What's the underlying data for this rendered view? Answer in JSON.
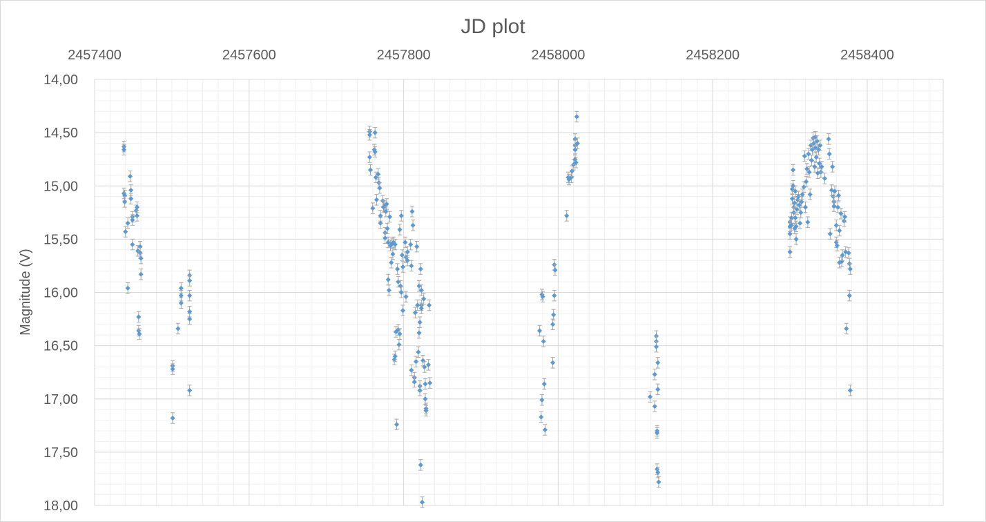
{
  "chart_data": {
    "type": "scatter",
    "title": "JD plot",
    "xlabel": "",
    "ylabel": "Magnitude (V)",
    "xlim": [
      2457380,
      2458480
    ],
    "ylim": [
      14.0,
      18.0
    ],
    "y_inverted": true,
    "x_axis_position": "top",
    "grid": true,
    "x_ticks": [
      "2457400",
      "2457600",
      "2457800",
      "2458000",
      "2458200",
      "2458400"
    ],
    "x_tick_values": [
      2457400,
      2457600,
      2457800,
      2458000,
      2458200,
      2458400
    ],
    "y_ticks": [
      "14,00",
      "14,50",
      "15,00",
      "15,50",
      "16,00",
      "16,50",
      "17,00",
      "17,50",
      "18,00"
    ],
    "y_tick_values": [
      14.0,
      14.5,
      15.0,
      15.5,
      16.0,
      16.5,
      17.0,
      17.5,
      18.0
    ],
    "marker_color": "#5b9bd5",
    "errorbar_color": "#a6a6a6",
    "series": [
      {
        "error": 0.05,
        "points": [
          [
            2457438,
            14.63
          ],
          [
            2457438,
            14.66
          ],
          [
            2457438,
            15.07
          ],
          [
            2457439,
            15.09
          ],
          [
            2457439,
            15.15
          ],
          [
            2457440,
            15.43
          ],
          [
            2457443,
            15.35
          ],
          [
            2457443,
            15.96
          ],
          [
            2457446,
            14.91
          ],
          [
            2457447,
            15.04
          ],
          [
            2457447,
            15.12
          ],
          [
            2457449,
            15.29
          ],
          [
            2457449,
            15.32
          ],
          [
            2457449,
            15.55
          ],
          [
            2457454,
            15.23
          ],
          [
            2457455,
            15.2
          ],
          [
            2457455,
            15.28
          ],
          [
            2457456,
            15.61
          ],
          [
            2457457,
            16.23
          ],
          [
            2457457,
            16.36
          ],
          [
            2457458,
            16.39
          ],
          [
            2457459,
            15.57
          ],
          [
            2457459,
            15.63
          ],
          [
            2457460,
            15.68
          ],
          [
            2457460,
            15.83
          ],
          [
            2457501,
            16.69
          ],
          [
            2457501,
            16.72
          ],
          [
            2457501,
            17.18
          ],
          [
            2457508,
            16.34
          ],
          [
            2457512,
            15.96
          ],
          [
            2457512,
            16.03
          ],
          [
            2457512,
            16.1
          ],
          [
            2457523,
            15.84
          ],
          [
            2457523,
            15.89
          ],
          [
            2457523,
            16.03
          ],
          [
            2457523,
            16.18
          ],
          [
            2457523,
            16.25
          ],
          [
            2457523,
            16.92
          ],
          [
            2457756,
            14.49
          ],
          [
            2457756,
            14.52
          ],
          [
            2457756,
            14.73
          ],
          [
            2457757,
            14.85
          ],
          [
            2457760,
            15.21
          ],
          [
            2457762,
            14.66
          ],
          [
            2457763,
            14.5
          ],
          [
            2457763,
            14.68
          ],
          [
            2457764,
            14.92
          ],
          [
            2457765,
            15.13
          ],
          [
            2457767,
            14.89
          ],
          [
            2457768,
            14.97
          ],
          [
            2457769,
            15.02
          ],
          [
            2457770,
            15.28
          ],
          [
            2457770,
            15.35
          ],
          [
            2457773,
            15.14
          ],
          [
            2457774,
            15.2
          ],
          [
            2457775,
            15.19
          ],
          [
            2457776,
            15.44
          ],
          [
            2457776,
            15.49
          ],
          [
            2457777,
            15.24
          ],
          [
            2457778,
            15.17
          ],
          [
            2457779,
            15.4
          ],
          [
            2457780,
            15.53
          ],
          [
            2457780,
            15.88
          ],
          [
            2457781,
            15.98
          ],
          [
            2457782,
            15.29
          ],
          [
            2457783,
            15.56
          ],
          [
            2457784,
            15.72
          ],
          [
            2457785,
            15.54
          ],
          [
            2457786,
            15.64
          ],
          [
            2457787,
            15.53
          ],
          [
            2457788,
            16.63
          ],
          [
            2457789,
            15.55
          ],
          [
            2457789,
            16.6
          ],
          [
            2457790,
            16.37
          ],
          [
            2457791,
            17.24
          ],
          [
            2457792,
            15.78
          ],
          [
            2457793,
            15.9
          ],
          [
            2457793,
            16.35
          ],
          [
            2457794,
            16.49
          ],
          [
            2457795,
            15.41
          ],
          [
            2457795,
            16.39
          ],
          [
            2457796,
            15.94
          ],
          [
            2457797,
            16.0
          ],
          [
            2457797,
            15.28
          ],
          [
            2457798,
            15.65
          ],
          [
            2457799,
            15.76
          ],
          [
            2457799,
            16.17
          ],
          [
            2457802,
            15.53
          ],
          [
            2457803,
            16.04
          ],
          [
            2457803,
            15.67
          ],
          [
            2457805,
            15.62
          ],
          [
            2457805,
            15.7
          ],
          [
            2457809,
            15.55
          ],
          [
            2457810,
            15.75
          ],
          [
            2457810,
            16.73
          ],
          [
            2457811,
            15.24
          ],
          [
            2457812,
            15.37
          ],
          [
            2457814,
            16.8
          ],
          [
            2457814,
            16.84
          ],
          [
            2457815,
            16.19
          ],
          [
            2457816,
            16.65
          ],
          [
            2457817,
            15.57
          ],
          [
            2457818,
            16.12
          ],
          [
            2457819,
            16.56
          ],
          [
            2457820,
            15.94
          ],
          [
            2457820,
            16.38
          ],
          [
            2457821,
            16.28
          ],
          [
            2457821,
            16.88
          ],
          [
            2457821,
            16.92
          ],
          [
            2457822,
            15.78
          ],
          [
            2457822,
            17.62
          ],
          [
            2457823,
            15.98
          ],
          [
            2457823,
            16.12
          ],
          [
            2457823,
            16.15
          ],
          [
            2457824,
            17.97
          ],
          [
            2457825,
            16.64
          ],
          [
            2457826,
            16.06
          ],
          [
            2457827,
            16.7
          ],
          [
            2457828,
            16.86
          ],
          [
            2457828,
            17.0
          ],
          [
            2457829,
            17.09
          ],
          [
            2457829,
            17.11
          ],
          [
            2457832,
            16.68
          ],
          [
            2457833,
            16.12
          ],
          [
            2457834,
            16.85
          ],
          [
            2457976,
            16.36
          ],
          [
            2457978,
            17.17
          ],
          [
            2457979,
            17.01
          ],
          [
            2457979,
            16.02
          ],
          [
            2457980,
            16.04
          ],
          [
            2457981,
            16.46
          ],
          [
            2457982,
            16.86
          ],
          [
            2457983,
            17.29
          ],
          [
            2457993,
            16.66
          ],
          [
            2457993,
            16.3
          ],
          [
            2457994,
            16.21
          ],
          [
            2457995,
            16.03
          ],
          [
            2457995,
            15.74
          ],
          [
            2457996,
            15.79
          ],
          [
            2458011,
            15.28
          ],
          [
            2458013,
            14.92
          ],
          [
            2458014,
            14.94
          ],
          [
            2458017,
            14.92
          ],
          [
            2458018,
            14.86
          ],
          [
            2458020,
            14.8
          ],
          [
            2458022,
            14.56
          ],
          [
            2458022,
            14.62
          ],
          [
            2458022,
            14.66
          ],
          [
            2458022,
            14.75
          ],
          [
            2458023,
            14.78
          ],
          [
            2458024,
            14.35
          ],
          [
            2458025,
            14.6
          ],
          [
            2458119,
            16.98
          ],
          [
            2458125,
            16.77
          ],
          [
            2458125,
            17.07
          ],
          [
            2458127,
            16.41
          ],
          [
            2458127,
            16.46
          ],
          [
            2458127,
            16.51
          ],
          [
            2458128,
            17.3
          ],
          [
            2458128,
            17.32
          ],
          [
            2458128,
            17.66
          ],
          [
            2458129,
            16.66
          ],
          [
            2458129,
            16.91
          ],
          [
            2458129,
            17.69
          ],
          [
            2458130,
            17.78
          ],
          [
            2458300,
            15.34
          ],
          [
            2458300,
            15.38
          ],
          [
            2458300,
            15.45
          ],
          [
            2458300,
            15.62
          ],
          [
            2458302,
            15.3
          ],
          [
            2458302,
            15.37
          ],
          [
            2458303,
            15.03
          ],
          [
            2458303,
            15.12
          ],
          [
            2458304,
            14.85
          ],
          [
            2458304,
            15.0
          ],
          [
            2458305,
            15.2
          ],
          [
            2458305,
            15.25
          ],
          [
            2458306,
            15.16
          ],
          [
            2458306,
            15.4
          ],
          [
            2458307,
            15.05
          ],
          [
            2458307,
            15.3
          ],
          [
            2458308,
            15.5
          ],
          [
            2458308,
            15.38
          ],
          [
            2458309,
            15.22
          ],
          [
            2458310,
            15.13
          ],
          [
            2458311,
            15.1
          ],
          [
            2458312,
            15.18
          ],
          [
            2458313,
            15.35
          ],
          [
            2458314,
            15.25
          ],
          [
            2458315,
            15.15
          ],
          [
            2458316,
            15.08
          ],
          [
            2458318,
            15.01
          ],
          [
            2458319,
            14.72
          ],
          [
            2458320,
            15.2
          ],
          [
            2458321,
            14.96
          ],
          [
            2458322,
            14.84
          ],
          [
            2458323,
            15.34
          ],
          [
            2458324,
            14.7
          ],
          [
            2458325,
            14.87
          ],
          [
            2458326,
            15.08
          ],
          [
            2458327,
            14.62
          ],
          [
            2458328,
            14.76
          ],
          [
            2458329,
            14.66
          ],
          [
            2458330,
            14.55
          ],
          [
            2458331,
            14.6
          ],
          [
            2458332,
            14.82
          ],
          [
            2458333,
            14.54
          ],
          [
            2458333,
            14.64
          ],
          [
            2458334,
            14.73
          ],
          [
            2458335,
            14.58
          ],
          [
            2458336,
            14.88
          ],
          [
            2458337,
            14.66
          ],
          [
            2458338,
            14.79
          ],
          [
            2458339,
            14.62
          ],
          [
            2458340,
            14.87
          ],
          [
            2458341,
            14.82
          ],
          [
            2458345,
            14.93
          ],
          [
            2458350,
            14.56
          ],
          [
            2458351,
            14.7
          ],
          [
            2458352,
            15.45
          ],
          [
            2458354,
            15.04
          ],
          [
            2458355,
            14.82
          ],
          [
            2458356,
            15.1
          ],
          [
            2458357,
            15.15
          ],
          [
            2458357,
            15.19
          ],
          [
            2458358,
            15.05
          ],
          [
            2458360,
            15.37
          ],
          [
            2458360,
            15.53
          ],
          [
            2458361,
            15.56
          ],
          [
            2458362,
            15.2
          ],
          [
            2458363,
            15.09
          ],
          [
            2458364,
            15.42
          ],
          [
            2458364,
            15.72
          ],
          [
            2458366,
            15.26
          ],
          [
            2458367,
            15.71
          ],
          [
            2458368,
            15.65
          ],
          [
            2458370,
            15.33
          ],
          [
            2458371,
            15.29
          ],
          [
            2458372,
            15.62
          ],
          [
            2458373,
            16.34
          ],
          [
            2458376,
            15.63
          ],
          [
            2458377,
            16.03
          ],
          [
            2458377,
            15.73
          ],
          [
            2458378,
            15.78
          ],
          [
            2458378,
            16.92
          ]
        ]
      }
    ]
  }
}
